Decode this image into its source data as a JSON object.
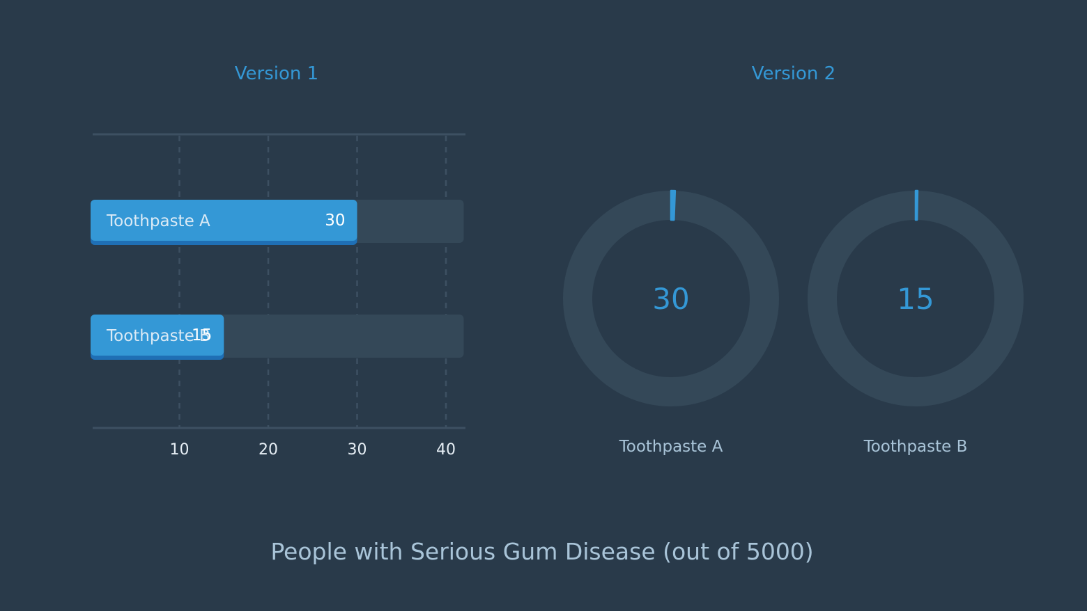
{
  "colors": {
    "background": "#293a4a",
    "accent": "#3498d6",
    "accent_shadow": "#1f6fb5",
    "track": "#344858",
    "grid": "#3d5062",
    "label_text": "#a9c4d8",
    "bar_label_text": "#dbeaf5",
    "tick_text": "#e6eef5"
  },
  "chart_data": [
    {
      "type": "bar",
      "orientation": "horizontal",
      "title": "Version 1",
      "categories": [
        "Toothpaste A",
        "Toothpaste B"
      ],
      "values": [
        30,
        15
      ],
      "value_labels": [
        "30",
        "15"
      ],
      "xlim": [
        0,
        42
      ],
      "xticks": [
        10,
        20,
        30,
        40
      ],
      "xtick_labels": [
        "10",
        "20",
        "30",
        "40"
      ],
      "grid": "vertical dashed"
    },
    {
      "type": "pie",
      "style": "donut",
      "title": "Version 2",
      "denominator": 5000,
      "items": [
        {
          "label": "Toothpaste A",
          "value": 30,
          "value_label": "30"
        },
        {
          "label": "Toothpaste B",
          "value": 15,
          "value_label": "15"
        }
      ]
    }
  ],
  "caption": "People with Serious Gum Disease (out of 5000)"
}
